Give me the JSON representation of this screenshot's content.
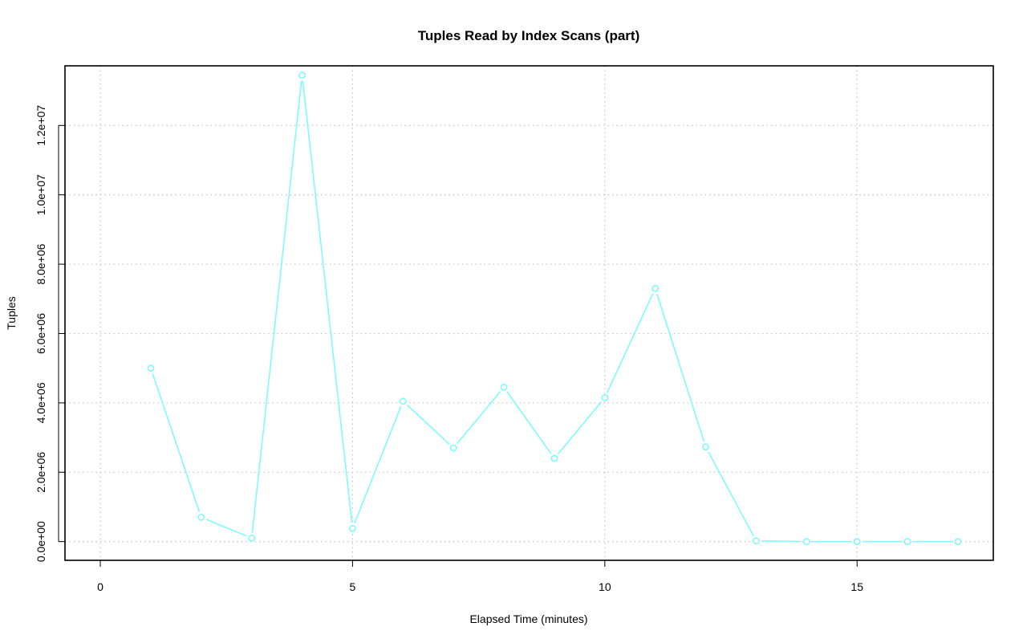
{
  "chart_data": {
    "type": "line",
    "title": "Tuples Read by Index Scans (part)",
    "xlabel": "Elapsed Time (minutes)",
    "ylabel": "Tuples",
    "xlim": [
      -0.7,
      17.7
    ],
    "ylim": [
      -540000,
      13720000
    ],
    "x_ticks": [
      0,
      5,
      10,
      15
    ],
    "x_tick_labels": [
      "0",
      "5",
      "10",
      "15"
    ],
    "y_ticks": [
      0,
      2000000,
      4000000,
      6000000,
      8000000,
      10000000,
      12000000
    ],
    "y_tick_labels": [
      "0.0e+00",
      "2.0e+06",
      "4.0e+06",
      "6.0e+06",
      "8.0e+06",
      "1.0e+07",
      "1.2e+07"
    ],
    "grid": true,
    "series": [
      {
        "color": "#7ffbfb",
        "marker": "circle",
        "x": [
          1,
          2,
          3,
          4,
          5,
          6,
          7,
          8,
          9,
          10,
          11,
          12,
          13,
          14,
          15,
          16,
          17
        ],
        "values": [
          5000000,
          700000,
          100000,
          13450000,
          380000,
          4050000,
          2700000,
          4450000,
          2400000,
          4150000,
          7300000,
          2730000,
          20000,
          0,
          0,
          0,
          0
        ]
      }
    ]
  }
}
